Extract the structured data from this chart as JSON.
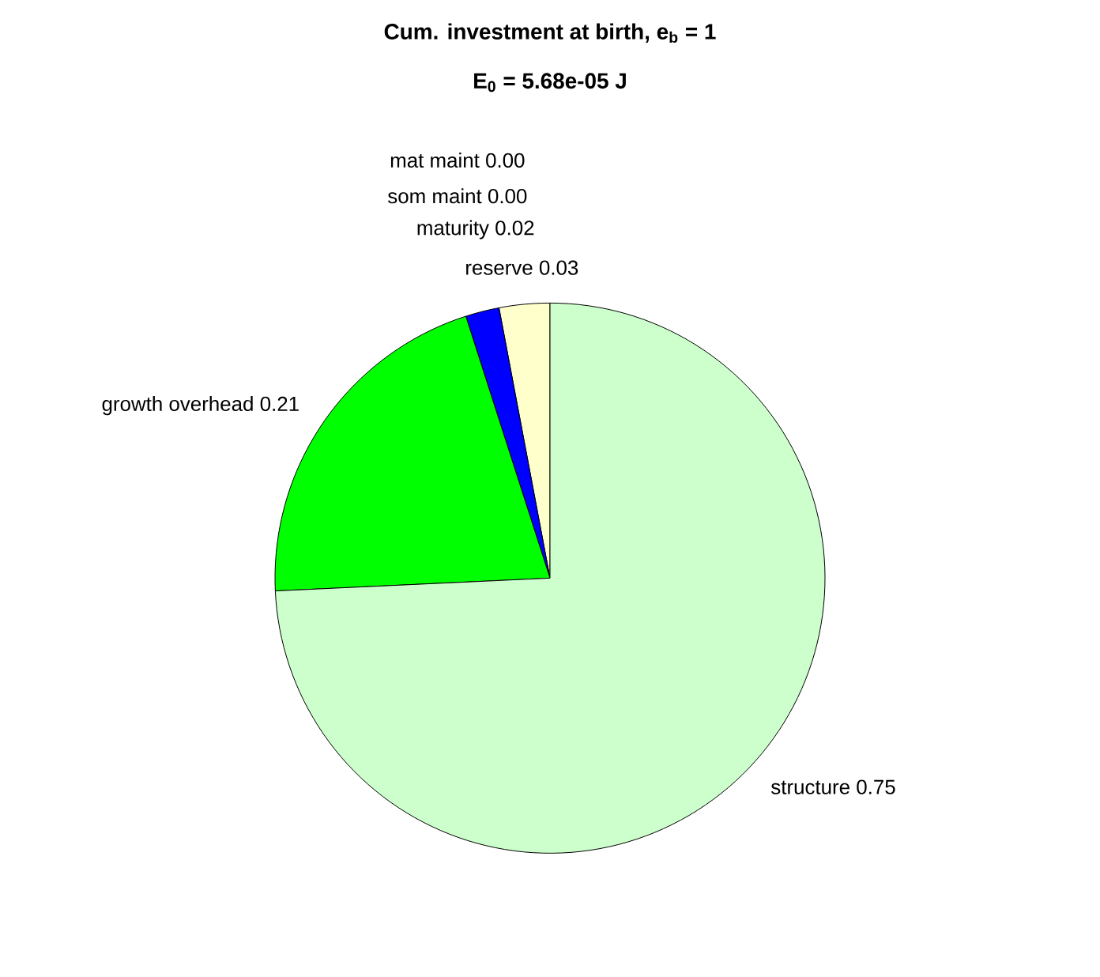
{
  "chart_data": {
    "type": "pie",
    "title": "Cum. investment at birth, e$_{b}$ = 1",
    "subtitle": "E$_{0}$ = 5.68e-05 J",
    "categories": [
      "reserve",
      "maturity",
      "som maint",
      "mat maint",
      "growth overhead",
      "structure"
    ],
    "values": [
      0.03,
      0.02,
      0,
      0,
      0.21,
      0.75
    ],
    "value_labels": [
      "0.03",
      "0.02",
      "0.00",
      "0.00",
      "0.21",
      "0.75"
    ],
    "colors": [
      "#ffffcc",
      "#0000ff",
      "#ff0000",
      "#ff00ff",
      "#00ff00",
      "#ccffcc"
    ]
  }
}
